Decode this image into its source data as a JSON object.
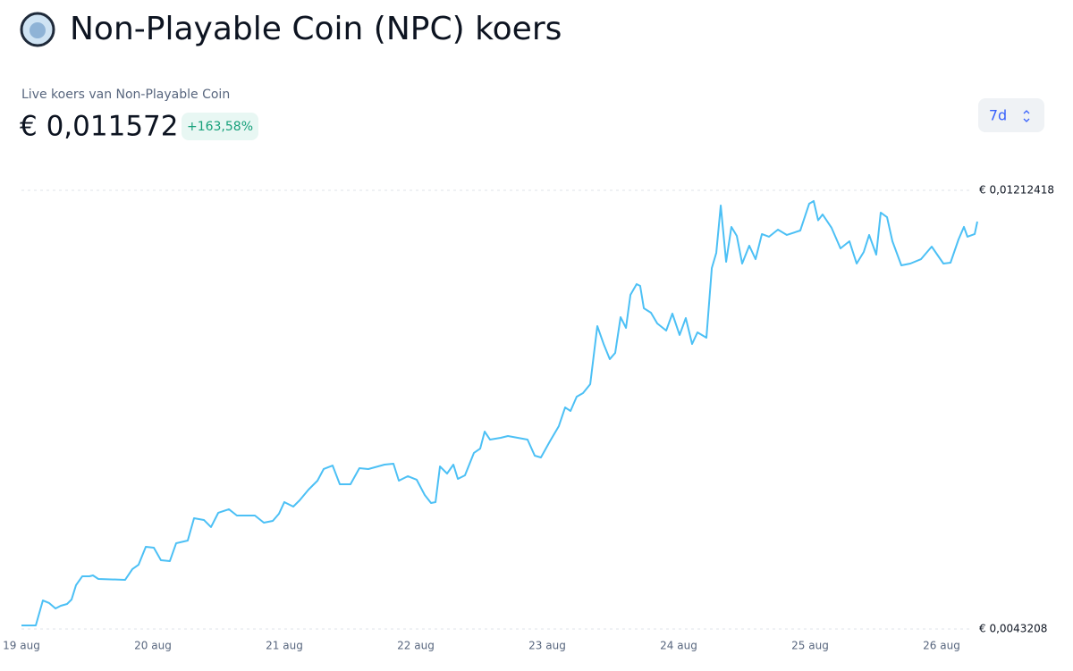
{
  "header": {
    "title": "Non-Playable Coin (NPC) koers",
    "price_label": "Live koers van Non-Playable Coin",
    "price": "€ 0,011572",
    "change": "+163,58%",
    "period": "7d"
  },
  "chart_data": {
    "type": "line",
    "color": "#4cc0f5",
    "x": [
      0,
      0.109,
      0.163,
      0.211,
      0.259,
      0.299,
      0.347,
      0.381,
      0.415,
      0.463,
      0.517,
      0.544,
      0.585,
      0.789,
      0.844,
      0.891,
      0.946,
      1.007,
      1.061,
      1.129,
      1.177,
      1.265,
      1.313,
      1.388,
      1.442,
      1.497,
      1.578,
      1.639,
      1.776,
      1.844,
      1.912,
      1.959,
      2.0,
      2.068,
      2.116,
      2.184,
      2.252,
      2.299,
      2.367,
      2.422,
      2.503,
      2.571,
      2.639,
      2.762,
      2.83,
      2.871,
      2.939,
      3.007,
      3.068,
      3.116,
      3.15,
      3.184,
      3.238,
      3.286,
      3.32,
      3.374,
      3.442,
      3.49,
      3.524,
      3.565,
      3.646,
      3.701,
      3.85,
      3.905,
      3.952,
      4.02,
      4.088,
      4.136,
      4.177,
      4.224,
      4.272,
      4.327,
      4.381,
      4.429,
      4.476,
      4.517,
      4.558,
      4.599,
      4.633,
      4.68,
      4.707,
      4.735,
      4.789,
      4.837,
      4.905,
      4.952,
      5.007,
      5.054,
      5.102,
      5.143,
      5.211,
      5.252,
      5.286,
      5.32,
      5.361,
      5.401,
      5.442,
      5.483,
      5.537,
      5.585,
      5.633,
      5.687,
      5.755,
      5.823,
      5.925,
      5.993,
      6.027,
      6.061,
      6.095,
      6.163,
      6.231,
      6.299,
      6.354,
      6.408,
      6.449,
      6.503,
      6.537,
      6.585,
      6.626,
      6.694,
      6.762,
      6.844,
      6.925,
      7.014,
      7.068,
      7.129,
      7.17,
      7.197,
      7.252,
      7.272
    ],
    "values": [
      0.004384,
      0.004384,
      0.004829,
      0.004782,
      0.004686,
      0.004734,
      0.004766,
      0.004845,
      0.0051,
      0.005259,
      0.005259,
      0.005274,
      0.005211,
      0.005195,
      0.005386,
      0.005465,
      0.005783,
      0.005767,
      0.005545,
      0.005529,
      0.005847,
      0.005894,
      0.006292,
      0.00626,
      0.006133,
      0.006387,
      0.006451,
      0.006339,
      0.006339,
      0.006212,
      0.006244,
      0.006371,
      0.006578,
      0.006498,
      0.006609,
      0.0068,
      0.006959,
      0.007166,
      0.007229,
      0.006896,
      0.006896,
      0.007182,
      0.007166,
      0.007245,
      0.007261,
      0.006959,
      0.007039,
      0.006975,
      0.006705,
      0.006562,
      0.006578,
      0.007213,
      0.007086,
      0.007245,
      0.006991,
      0.007054,
      0.007452,
      0.007531,
      0.007833,
      0.00769,
      0.007722,
      0.007754,
      0.00769,
      0.007404,
      0.007372,
      0.007658,
      0.007929,
      0.008262,
      0.008199,
      0.008453,
      0.008517,
      0.008676,
      0.009709,
      0.009391,
      0.009121,
      0.009232,
      0.009868,
      0.009677,
      0.010265,
      0.010456,
      0.010424,
      0.010026,
      0.009947,
      0.009756,
      0.009629,
      0.009931,
      0.00955,
      0.009852,
      0.009391,
      0.009597,
      0.009502,
      0.010742,
      0.011012,
      0.011854,
      0.010853,
      0.011473,
      0.011314,
      0.010821,
      0.011139,
      0.0109,
      0.011346,
      0.011298,
      0.011425,
      0.01133,
      0.011409,
      0.011886,
      0.011934,
      0.011591,
      0.011695,
      0.011457,
      0.011091,
      0.011218,
      0.010821,
      0.011028,
      0.01133,
      0.01098,
      0.011727,
      0.011647,
      0.011218,
      0.010789,
      0.010821,
      0.0109,
      0.011123,
      0.010821,
      0.010837,
      0.01125,
      0.011473,
      0.011298,
      0.011346,
      0.011568
    ],
    "xlim": [
      0,
      7.272
    ],
    "xticks": [
      {
        "value": 0,
        "label": "19 aug"
      },
      {
        "value": 1,
        "label": "20 aug"
      },
      {
        "value": 2,
        "label": "21 aug"
      },
      {
        "value": 3,
        "label": "22 aug"
      },
      {
        "value": 4,
        "label": "23 aug"
      },
      {
        "value": 5,
        "label": "24 aug"
      },
      {
        "value": 6,
        "label": "25 aug"
      },
      {
        "value": 7,
        "label": "26 aug"
      }
    ],
    "ylim": [
      0.0043208,
      0.01212418
    ],
    "yticks": [
      {
        "value": 0.01212418,
        "label": "€ 0,01212418"
      },
      {
        "value": 0.0043208,
        "label": "€ 0,0043208"
      }
    ],
    "grid": true
  }
}
